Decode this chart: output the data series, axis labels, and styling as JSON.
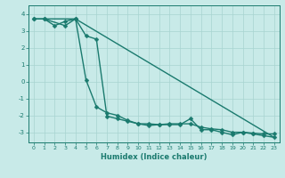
{
  "title": "",
  "xlabel": "Humidex (Indice chaleur)",
  "xlim": [
    -0.5,
    23.5
  ],
  "ylim": [
    -3.6,
    4.5
  ],
  "yticks": [
    -3,
    -2,
    -1,
    0,
    1,
    2,
    3,
    4
  ],
  "xticks": [
    0,
    1,
    2,
    3,
    4,
    5,
    6,
    7,
    8,
    9,
    10,
    11,
    12,
    13,
    14,
    15,
    16,
    17,
    18,
    19,
    20,
    21,
    22,
    23
  ],
  "line_color": "#1a7a6e",
  "bg_color": "#c8eae8",
  "grid_color": "#a8d4d0",
  "line1_x": [
    0,
    1,
    2,
    3,
    4,
    5,
    6,
    7,
    8,
    9,
    10,
    11,
    12,
    13,
    14,
    15,
    16,
    17,
    18,
    19,
    20,
    21,
    22,
    23
  ],
  "line1_y": [
    3.7,
    3.7,
    3.3,
    3.55,
    3.7,
    0.1,
    -1.5,
    -1.85,
    -2.0,
    -2.3,
    -2.5,
    -2.5,
    -2.55,
    -2.5,
    -2.5,
    -2.5,
    -2.7,
    -2.8,
    -2.85,
    -3.0,
    -3.0,
    -3.05,
    -3.1,
    -3.1
  ],
  "line2_x": [
    0,
    1,
    3,
    4,
    5,
    6,
    7,
    8,
    9,
    10,
    11,
    12,
    13,
    14,
    15,
    16,
    17,
    18,
    19,
    20,
    21,
    22,
    23
  ],
  "line2_y": [
    3.7,
    3.7,
    3.3,
    3.7,
    2.7,
    2.5,
    -2.05,
    -2.2,
    -2.35,
    -2.5,
    -2.6,
    -2.55,
    -2.55,
    -2.55,
    -2.2,
    -2.85,
    -2.85,
    -3.0,
    -3.15,
    -3.0,
    -3.1,
    -3.2,
    -3.3
  ],
  "line3_x": [
    1,
    4,
    23
  ],
  "line3_y": [
    3.7,
    3.7,
    -3.3
  ],
  "markersize": 2.5,
  "linewidth": 1.0
}
